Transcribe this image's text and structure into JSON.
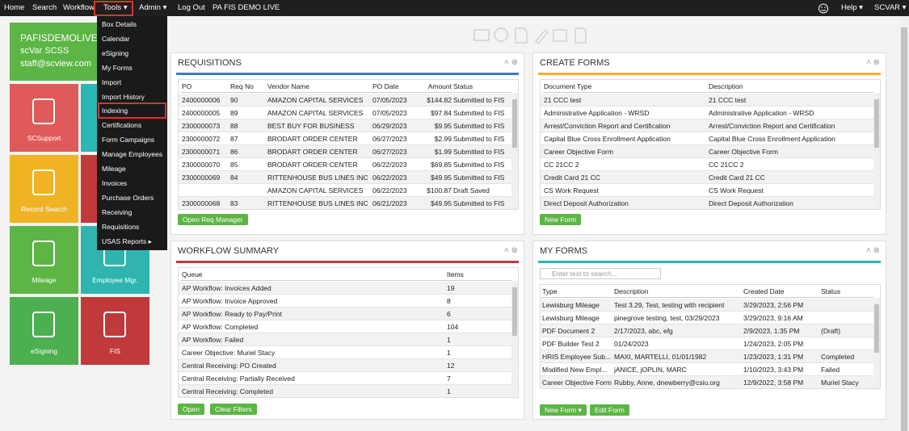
{
  "nav": {
    "items": [
      "Home",
      "Search",
      "Workflow",
      "Tools",
      "Admin",
      "Log Out",
      "PA FIS DEMO LIVE"
    ],
    "right": [
      "Help",
      "SCVAR"
    ]
  },
  "tools_menu": [
    "Box Details",
    "Calendar",
    "eSigning",
    "My Forms",
    "Import",
    "Import History",
    "Indexing",
    "Certifications",
    "Form Campaigns",
    "Manage Employees",
    "Mileage",
    "Invoices",
    "Purchase Orders",
    "Receiving",
    "Requisitions",
    "USAS Reports"
  ],
  "user": {
    "name": "PAFISDEMOLIVE",
    "org": "scVar SCSS",
    "email": "staff@scview.com"
  },
  "tiles": [
    "SCSupport",
    "Record Search",
    "Mileage",
    "Employee Mgr.",
    "eSigning",
    "FIS"
  ],
  "requisitions": {
    "title": "REQUISITIONS",
    "columns": [
      "PO",
      "Req No",
      "Vendor Name",
      "PO Date",
      "Amount",
      "Status"
    ],
    "rows": [
      [
        "2400000006",
        "90",
        "AMAZON CAPITAL SERVICES",
        "07/05/2023",
        "$144.82",
        "Submitted to FIS"
      ],
      [
        "2400000005",
        "89",
        "AMAZON CAPITAL SERVICES",
        "07/05/2023",
        "$97.84",
        "Submitted to FIS"
      ],
      [
        "2300000073",
        "88",
        "BEST BUY FOR BUSINESS",
        "06/29/2023",
        "$9.95",
        "Submitted to FIS"
      ],
      [
        "2300000072",
        "87",
        "BRODART ORDER CENTER",
        "06/27/2023",
        "$2.99",
        "Submitted to FIS"
      ],
      [
        "2300000071",
        "86",
        "BRODART ORDER CENTER",
        "06/27/2023",
        "$1.99",
        "Submitted to FIS"
      ],
      [
        "2300000070",
        "85",
        "BRODART ORDER CENTER",
        "06/22/2023",
        "$69.85",
        "Submitted to FIS"
      ],
      [
        "2300000069",
        "84",
        "RITTENHOUSE BUS LINES INC",
        "06/22/2023",
        "$49.95",
        "Submitted to FIS"
      ],
      [
        null,
        null,
        "AMAZON CAPITAL SERVICES",
        "06/22/2023",
        "$100.87",
        "Draft Saved"
      ],
      [
        "2300000068",
        "83",
        "RITTENHOUSE BUS LINES INC",
        "06/21/2023",
        "$49.95",
        "Submitted to FIS"
      ]
    ],
    "button": "Open Req Manager"
  },
  "create_forms": {
    "title": "CREATE FORMS",
    "columns": [
      "Document Type",
      "Description"
    ],
    "rows": [
      [
        "21 CCC test",
        "21 CCC test"
      ],
      [
        "Administrative Application - WRSD",
        "Administrative Application - WRSD"
      ],
      [
        "Arrest/Conviction Report and Certification",
        "Arrest/Conviction Report and Certification"
      ],
      [
        "Capital Blue Cross Enrollment Application",
        "Capital Blue Cross Enrollment Application"
      ],
      [
        "Career Objective Form",
        "Career Objective Form"
      ],
      [
        "CC 21CC 2",
        "CC 21CC 2"
      ],
      [
        "Credit Card 21 CC",
        "Credit Card 21 CC"
      ],
      [
        "CS Work Request",
        "CS Work Request"
      ],
      [
        "Direct Deposit Authorization",
        "Direct Deposit Authorization"
      ]
    ],
    "button": "New Form"
  },
  "workflow_summary": {
    "title": "WORKFLOW SUMMARY",
    "columns": [
      "Queue",
      "Items"
    ],
    "rows": [
      [
        "AP Workflow: Invoices Added",
        "19"
      ],
      [
        "AP Workflow: Invoice Approved",
        "8"
      ],
      [
        "AP Workflow: Ready to Pay/Print",
        "6"
      ],
      [
        "AP Workflow: Completed",
        "104"
      ],
      [
        "AP Workflow: Failed",
        "1"
      ],
      [
        "Career Objective: Muriel Stacy",
        "1"
      ],
      [
        "Central Receiving: PO Created",
        "12"
      ],
      [
        "Central Receiving: Partially Received",
        "7"
      ],
      [
        "Central Receiving: Completed",
        "1"
      ]
    ],
    "buttons": [
      "Open",
      "Clear Filters"
    ]
  },
  "my_forms": {
    "title": "MY FORMS",
    "search_placeholder": "Enter text to search...",
    "columns": [
      "Type",
      "Description",
      "Created Date",
      "Status"
    ],
    "rows": [
      [
        "Lewisburg Mileage",
        "Test 3.29, Test, testing with recipient",
        "3/29/2023, 2:56 PM",
        null
      ],
      [
        "Lewisburg Mileage",
        "pinegrove testing, test, 03/29/2023",
        "3/29/2023, 9:16 AM",
        null
      ],
      [
        "PDF Document 2",
        "2/17/2023, abc, efg",
        "2/9/2023, 1:35 PM",
        "(Draft)"
      ],
      [
        "PDF Builder Test 2",
        "01/24/2023",
        "1/24/2023, 2:05 PM",
        null
      ],
      [
        "HRIS Employee Sub...",
        "MAXI, MARTELLI, 01/01/1982",
        "1/23/2023, 1:31 PM",
        "Completed"
      ],
      [
        "Modified New Empl...",
        "jANICE, jOPLIN, MARC",
        "1/10/2023, 3:43 PM",
        "Failed"
      ],
      [
        "Career Objective Form",
        "Rubby, Anne, dnewberry@csiu.org",
        "12/9/2022, 3:58 PM",
        "Muriel Stacy"
      ]
    ],
    "buttons": [
      "New Form",
      "Edit Form"
    ]
  }
}
